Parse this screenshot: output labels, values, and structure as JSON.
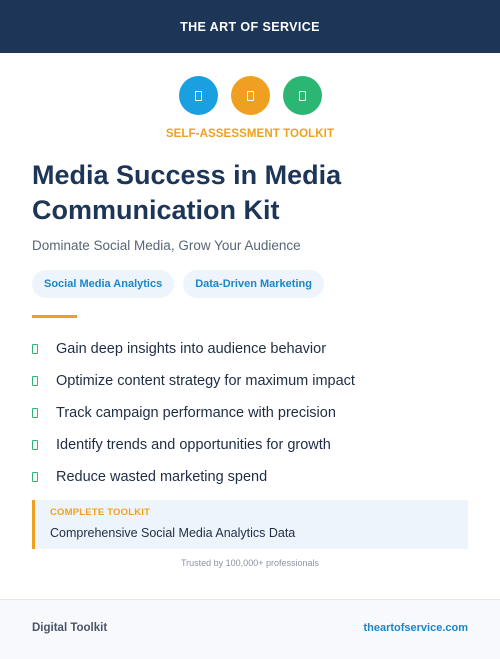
{
  "header": {
    "brand": "THE ART OF SERVICE"
  },
  "icons": [
    {
      "name": "document-icon",
      "color": "#1a9fe0"
    },
    {
      "name": "document-icon",
      "color": "#f0a020"
    },
    {
      "name": "document-icon",
      "color": "#2bb673"
    }
  ],
  "eyebrow": "SELF-ASSESSMENT TOOLKIT",
  "title": "Media Success in Media Communication Kit",
  "subtitle": "Dominate Social Media, Grow Your Audience",
  "tags": [
    "Social Media Analytics",
    "Data-Driven Marketing"
  ],
  "features": [
    "Gain deep insights into audience behavior",
    "Optimize content strategy for maximum impact",
    "Track campaign performance with precision",
    "Identify trends and opportunities for growth",
    "Reduce wasted marketing spend"
  ],
  "callout": {
    "label": "COMPLETE TOOLKIT",
    "text": "Comprehensive Social Media Analytics Data"
  },
  "trust": "Trusted by 100,000+ professionals",
  "footer": {
    "left": "Digital Toolkit",
    "right": "theartofservice.com"
  },
  "colors": {
    "header_bg": "#1d3557",
    "accent": "#f0a020",
    "link": "#1b86c8",
    "check": "#2bb673"
  }
}
